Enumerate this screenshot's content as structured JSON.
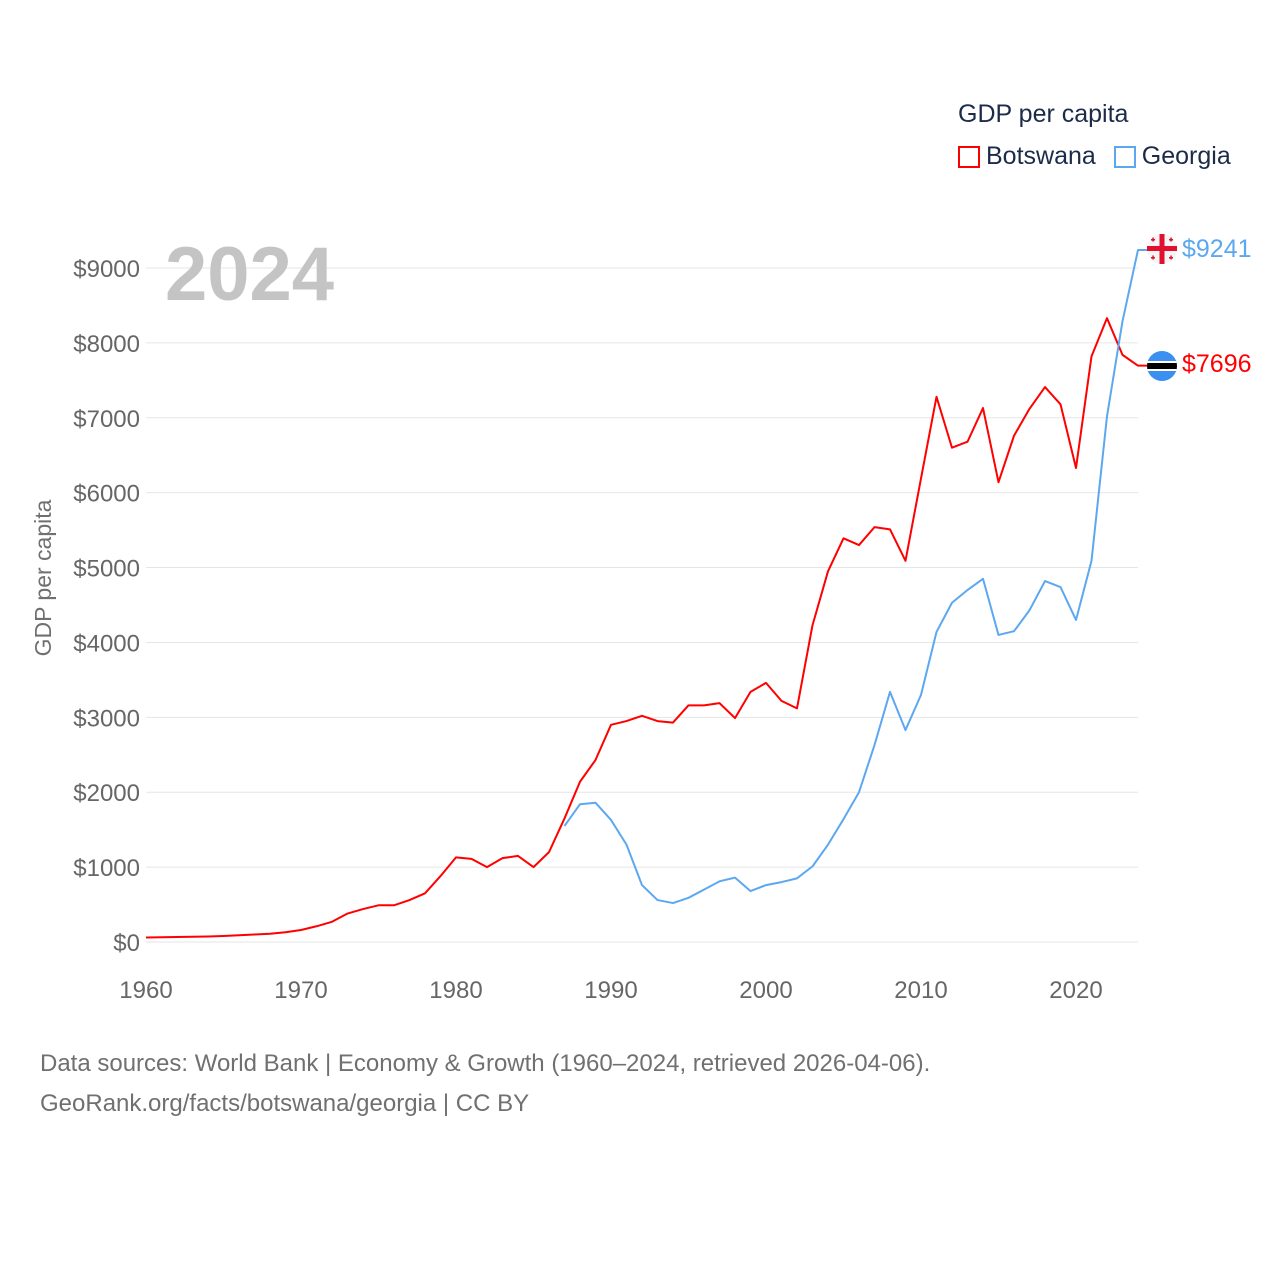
{
  "legend": {
    "title": "GDP per capita",
    "items": [
      {
        "label": "Botswana",
        "color": "#ff0000"
      },
      {
        "label": "Georgia",
        "color": "#5ca8f0"
      }
    ]
  },
  "year_label": "2024",
  "source": {
    "line1": "Data sources: World Bank | Economy & Growth (1960–2024, retrieved 2026-04-06).",
    "line2": "GeoRank.org/facts/botswana/georgia | CC BY"
  },
  "chart_data": {
    "type": "line",
    "title": "GDP per capita",
    "xlabel": "",
    "ylabel": "GDP per capita",
    "xlim": [
      1960,
      2024
    ],
    "ylim": [
      0,
      9000
    ],
    "x_ticks": [
      1960,
      1970,
      1980,
      1990,
      2000,
      2010,
      2020
    ],
    "x_tick_labels": [
      "1960",
      "1970",
      "1980",
      "1990",
      "2000",
      "2010",
      "2020"
    ],
    "y_ticks": [
      0,
      1000,
      2000,
      3000,
      4000,
      5000,
      6000,
      7000,
      8000,
      9000
    ],
    "y_tick_labels": [
      "$0",
      "$1000",
      "$2000",
      "$3000",
      "$4000",
      "$5000",
      "$6000",
      "$7000",
      "$8000",
      "$9000"
    ],
    "grid": true,
    "legend_position": "top-right",
    "series": [
      {
        "name": "Botswana",
        "color": "#ff0000",
        "end_label": "$7696",
        "start_year": 1960,
        "values": [
          60,
          63,
          66,
          70,
          74,
          80,
          90,
          100,
          110,
          130,
          160,
          210,
          270,
          380,
          440,
          490,
          490,
          560,
          650,
          880,
          1130,
          1110,
          1000,
          1120,
          1150,
          1000,
          1200,
          1650,
          2140,
          2430,
          2900,
          2950,
          3020,
          2950,
          2930,
          3160,
          3160,
          3190,
          2990,
          3340,
          3460,
          3220,
          3120,
          4230,
          4950,
          5390,
          5300,
          5540,
          5510,
          5090,
          6190,
          7280,
          6600,
          6680,
          7130,
          6140,
          6760,
          7120,
          7410,
          7180,
          6330,
          7820,
          8330,
          7840,
          7696
        ]
      },
      {
        "name": "Georgia",
        "color": "#5ca8f0",
        "end_label": "$9241",
        "start_year": 1987,
        "values": [
          1550,
          1840,
          1860,
          1630,
          1300,
          760,
          560,
          520,
          590,
          700,
          810,
          860,
          680,
          760,
          800,
          850,
          1010,
          1300,
          1640,
          2000,
          2630,
          3340,
          2830,
          3300,
          4140,
          4530,
          4700,
          4850,
          4100,
          4150,
          4430,
          4820,
          4740,
          4300,
          5090,
          7020,
          8290,
          9241
        ]
      }
    ]
  }
}
